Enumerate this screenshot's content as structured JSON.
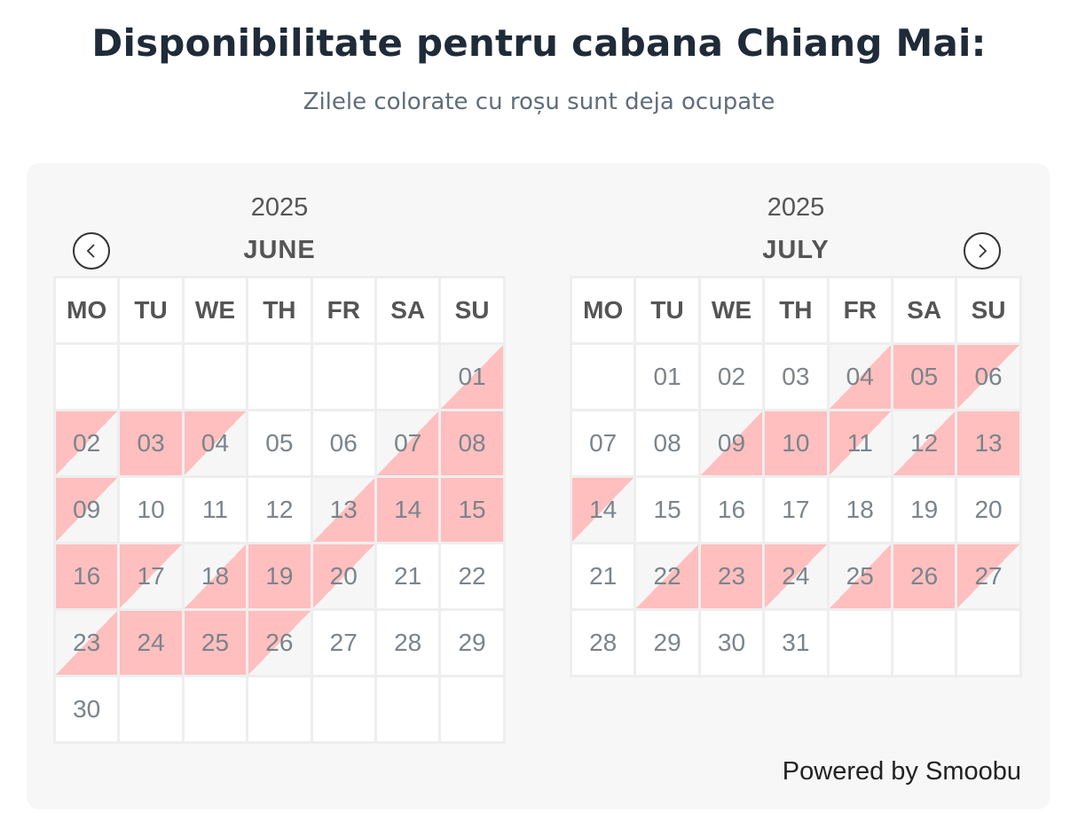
{
  "header": {
    "title": "Disponibilitate pentru cabana Chiang Mai:",
    "subtitle": "Zilele colorate cu roșu sunt deja ocupate"
  },
  "colors": {
    "booked": "#ffbfbf",
    "panel": "#f7f7f7",
    "title": "#1f2b38"
  },
  "weekdays": [
    "MO",
    "TU",
    "WE",
    "TH",
    "FR",
    "SA",
    "SU"
  ],
  "months": [
    {
      "year": "2025",
      "name": "JUNE",
      "weeks": [
        [
          {
            "d": ""
          },
          {
            "d": ""
          },
          {
            "d": ""
          },
          {
            "d": ""
          },
          {
            "d": ""
          },
          {
            "d": ""
          },
          {
            "d": "01",
            "s": "in"
          }
        ],
        [
          {
            "d": "02",
            "s": "out"
          },
          {
            "d": "03",
            "s": "full"
          },
          {
            "d": "04",
            "s": "out"
          },
          {
            "d": "05"
          },
          {
            "d": "06"
          },
          {
            "d": "07",
            "s": "in"
          },
          {
            "d": "08",
            "s": "full"
          }
        ],
        [
          {
            "d": "09",
            "s": "out"
          },
          {
            "d": "10"
          },
          {
            "d": "11"
          },
          {
            "d": "12"
          },
          {
            "d": "13",
            "s": "in"
          },
          {
            "d": "14",
            "s": "full"
          },
          {
            "d": "15",
            "s": "full"
          }
        ],
        [
          {
            "d": "16",
            "s": "full"
          },
          {
            "d": "17",
            "s": "out"
          },
          {
            "d": "18",
            "s": "in"
          },
          {
            "d": "19",
            "s": "full"
          },
          {
            "d": "20",
            "s": "out"
          },
          {
            "d": "21"
          },
          {
            "d": "22"
          }
        ],
        [
          {
            "d": "23",
            "s": "in"
          },
          {
            "d": "24",
            "s": "full"
          },
          {
            "d": "25",
            "s": "full"
          },
          {
            "d": "26",
            "s": "out"
          },
          {
            "d": "27"
          },
          {
            "d": "28"
          },
          {
            "d": "29"
          }
        ],
        [
          {
            "d": "30"
          },
          {
            "d": ""
          },
          {
            "d": ""
          },
          {
            "d": ""
          },
          {
            "d": ""
          },
          {
            "d": ""
          },
          {
            "d": ""
          }
        ]
      ]
    },
    {
      "year": "2025",
      "name": "JULY",
      "weeks": [
        [
          {
            "d": ""
          },
          {
            "d": "01"
          },
          {
            "d": "02"
          },
          {
            "d": "03"
          },
          {
            "d": "04",
            "s": "in"
          },
          {
            "d": "05",
            "s": "full"
          },
          {
            "d": "06",
            "s": "out"
          }
        ],
        [
          {
            "d": "07"
          },
          {
            "d": "08"
          },
          {
            "d": "09",
            "s": "in"
          },
          {
            "d": "10",
            "s": "full"
          },
          {
            "d": "11",
            "s": "out"
          },
          {
            "d": "12",
            "s": "in"
          },
          {
            "d": "13",
            "s": "full"
          }
        ],
        [
          {
            "d": "14",
            "s": "out"
          },
          {
            "d": "15"
          },
          {
            "d": "16"
          },
          {
            "d": "17"
          },
          {
            "d": "18"
          },
          {
            "d": "19"
          },
          {
            "d": "20"
          }
        ],
        [
          {
            "d": "21"
          },
          {
            "d": "22",
            "s": "in"
          },
          {
            "d": "23",
            "s": "full"
          },
          {
            "d": "24",
            "s": "out"
          },
          {
            "d": "25",
            "s": "in"
          },
          {
            "d": "26",
            "s": "full"
          },
          {
            "d": "27",
            "s": "out"
          }
        ],
        [
          {
            "d": "28"
          },
          {
            "d": "29"
          },
          {
            "d": "30"
          },
          {
            "d": "31"
          },
          {
            "d": ""
          },
          {
            "d": ""
          },
          {
            "d": ""
          }
        ]
      ]
    }
  ],
  "footer": {
    "powered_by": "Powered by Smoobu"
  }
}
